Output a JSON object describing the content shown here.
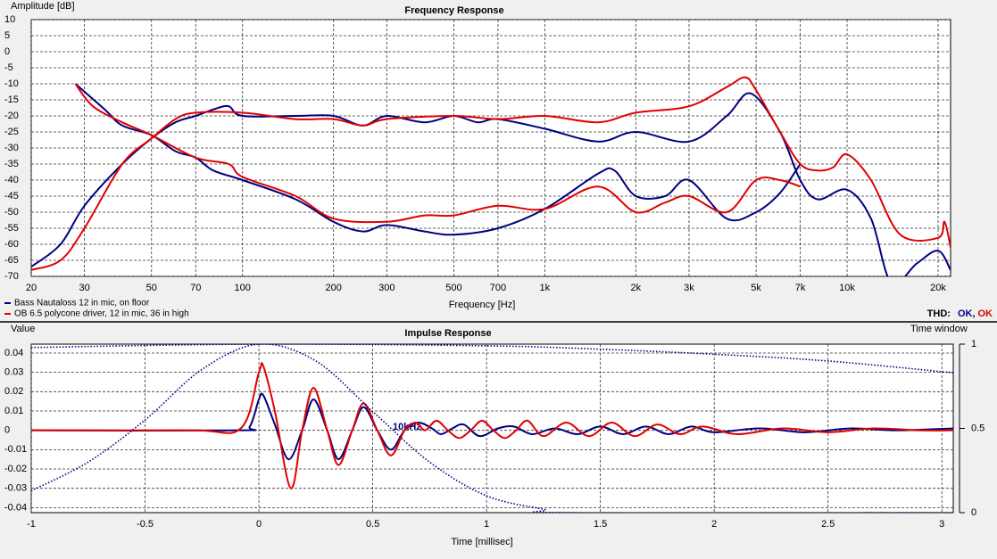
{
  "chart_data": [
    {
      "type": "line",
      "title": "Frequency Response",
      "ylabel": "Amplitude [dB]",
      "xlabel": "Frequency [Hz]",
      "xscale": "log",
      "xlim": [
        20,
        22000
      ],
      "ylim": [
        -70,
        10
      ],
      "grid": true,
      "legend": "bottom-left",
      "xticks": [
        20,
        30,
        50,
        70,
        100,
        200,
        300,
        500,
        700,
        {
          "value": 1000,
          "label": "1k"
        },
        {
          "value": 2000,
          "label": "2k"
        },
        {
          "value": 3000,
          "label": "3k"
        },
        {
          "value": 5000,
          "label": "5k"
        },
        {
          "value": 7000,
          "label": "7k"
        },
        {
          "value": 10000,
          "label": "10k"
        },
        {
          "value": 20000,
          "label": "20k"
        }
      ],
      "yticks": [
        10,
        5,
        0,
        -5,
        -10,
        -15,
        -20,
        -25,
        -30,
        -35,
        -40,
        -45,
        -50,
        -55,
        -60,
        -65,
        -70
      ],
      "thd": {
        "label": "THD:",
        "separator": ",",
        "items": [
          {
            "text": "OK",
            "color": "#00008b"
          },
          {
            "text": "OK",
            "color": "#e00000"
          }
        ]
      },
      "series": [
        {
          "name": "Bass Nautaloss 12 in mic, on floor",
          "color": "#000080",
          "curves": [
            {
              "x": [
                20,
                25,
                30,
                40,
                50,
                60,
                70,
                80,
                90,
                100,
                150,
                200,
                250,
                300,
                400,
                500,
                600,
                700,
                1000,
                1500,
                2000,
                3000,
                4000,
                4800,
                6000,
                7000,
                8000,
                10000,
                12000,
                14000,
                17000,
                20000,
                22000
              ],
              "values": [
                -67,
                -60,
                -48,
                -35,
                -27,
                -22,
                -20,
                -18,
                -17,
                -20,
                -20,
                -20,
                -23,
                -20,
                -22,
                -20,
                -22,
                -21,
                -24,
                -28,
                -25,
                -28,
                -20,
                -13,
                -25,
                -40,
                -46,
                -43,
                -52,
                -72,
                -66,
                -62,
                -68
              ]
            },
            {
              "x": [
                28,
                35,
                40,
                50,
                60,
                70,
                80,
                100,
                150,
                200,
                250,
                300,
                400,
                500,
                700,
                1000,
                1500,
                1700,
                2000,
                2500,
                3000,
                4000,
                5000,
                6000,
                7000
              ],
              "values": [
                -10,
                -18,
                -23,
                -26,
                -31,
                -33,
                -37,
                -40,
                -46,
                -53,
                -56,
                -54,
                -56,
                -57,
                -55,
                -49,
                -38,
                -37,
                -45,
                -45,
                -40,
                -52,
                -50,
                -44,
                -35
              ]
            }
          ]
        },
        {
          "name": "OB 6.5 polycone driver, 12 in mic, 36 in high",
          "color": "#e00000",
          "curves": [
            {
              "x": [
                20,
                25,
                30,
                40,
                50,
                60,
                70,
                100,
                150,
                200,
                250,
                300,
                500,
                700,
                1000,
                1500,
                2000,
                3000,
                4000,
                4600,
                5000,
                6000,
                7000,
                8000,
                9000,
                10000,
                12000,
                15000,
                20000,
                21000,
                22000
              ],
              "values": [
                -68,
                -65,
                -55,
                -35,
                -27,
                -21,
                -19,
                -19,
                -21,
                -21,
                -23,
                -21,
                -20,
                -21,
                -20,
                -22,
                -19,
                -17,
                -11,
                -8,
                -12,
                -25,
                -35,
                -37,
                -36,
                -32,
                -40,
                -57,
                -58,
                -53,
                -61
              ]
            },
            {
              "x": [
                28,
                32,
                40,
                50,
                70,
                90,
                100,
                150,
                200,
                300,
                400,
                500,
                700,
                1000,
                1500,
                2000,
                2500,
                3000,
                4000,
                5000,
                6000,
                7000
              ],
              "values": [
                -10,
                -17,
                -22,
                -26,
                -33,
                -35,
                -39,
                -45,
                -52,
                -53,
                -51,
                -51,
                -48,
                -49,
                -42,
                -50,
                -47,
                -45,
                -50,
                -40,
                -40,
                -42
              ]
            }
          ]
        }
      ]
    },
    {
      "type": "line",
      "title": "Impulse Response",
      "ylabel": "Value",
      "y2label": "Time window",
      "xlabel": "Time [millisec]",
      "annotation": "10kHz",
      "xlim": [
        -1,
        3.05
      ],
      "ylim": [
        -0.0426,
        0.0446
      ],
      "y2lim": [
        0,
        1
      ],
      "grid": true,
      "xticks": [
        -1,
        -0.5,
        0,
        0.5,
        1,
        1.5,
        2,
        2.5,
        3
      ],
      "yticks": [
        0.04,
        0.03,
        0.02,
        0.01,
        0,
        -0.01,
        -0.02,
        -0.03,
        -0.04
      ],
      "y2ticks": [
        1,
        0.5,
        0
      ],
      "series": [
        {
          "color": "#000080",
          "x": [
            -1,
            -0.1,
            -0.04,
            0,
            0.02,
            0.07,
            0.13,
            0.19,
            0.24,
            0.3,
            0.35,
            0.41,
            0.46,
            0.52,
            0.58,
            0.64,
            0.7,
            0.76,
            0.8,
            0.85,
            0.9,
            0.97,
            1.05,
            1.12,
            1.2,
            1.3,
            1.4,
            1.5,
            1.6,
            1.7,
            1.8,
            1.9,
            2.0,
            2.2,
            2.4,
            2.6,
            2.8,
            3.05
          ],
          "values": [
            0,
            0,
            0.002,
            0.016,
            0.018,
            0.003,
            -0.015,
            0,
            0.016,
            0,
            -0.015,
            0,
            0.012,
            0,
            -0.01,
            0,
            0.004,
            0.001,
            -0.002,
            0.001,
            0.003,
            -0.003,
            0.001,
            0.002,
            -0.002,
            0.001,
            -0.002,
            0.002,
            -0.002,
            0.002,
            -0.002,
            0.002,
            -0.001,
            0.001,
            -0.001,
            0.001,
            0,
            0.001
          ]
        },
        {
          "color": "#e00000",
          "x": [
            -1,
            -0.3,
            -0.08,
            0,
            0.02,
            0.07,
            0.14,
            0.19,
            0.24,
            0.3,
            0.35,
            0.41,
            0.46,
            0.52,
            0.58,
            0.64,
            0.69,
            0.73,
            0.78,
            0.83,
            0.88,
            0.93,
            0.98,
            1.03,
            1.08,
            1.13,
            1.18,
            1.25,
            1.35,
            1.45,
            1.55,
            1.65,
            1.75,
            1.85,
            1.95,
            2.1,
            2.3,
            2.5,
            2.7,
            2.9,
            3.05
          ],
          "values": [
            0,
            0,
            0.001,
            0.03,
            0.033,
            0.01,
            -0.03,
            0,
            0.022,
            0,
            -0.018,
            0,
            0.014,
            0,
            -0.013,
            0,
            0.004,
            0,
            0.005,
            0,
            -0.004,
            0,
            0.005,
            0,
            -0.004,
            0,
            0.005,
            -0.003,
            0.004,
            -0.003,
            0.004,
            -0.003,
            0.003,
            -0.002,
            0.002,
            -0.002,
            0.001,
            -0.001,
            0.001,
            0,
            0
          ]
        },
        {
          "color": "#000080",
          "style": "dotted",
          "axis": "y2",
          "x": [
            -1,
            -0.75,
            -0.5,
            -0.25,
            0,
            0.25,
            0.5,
            0.75,
            1.0,
            1.25,
            1.35,
            3.05
          ],
          "values": [
            0.13,
            0.3,
            0.55,
            0.85,
            1,
            0.9,
            0.6,
            0.3,
            0.1,
            0.02,
            0,
            0
          ]
        },
        {
          "color": "#000080",
          "style": "dotted",
          "axis": "y2",
          "x": [
            -1,
            0,
            1,
            1.5,
            2,
            2.5,
            3.05
          ],
          "values": [
            0.98,
            1,
            0.99,
            0.97,
            0.94,
            0.9,
            0.83
          ]
        }
      ]
    }
  ]
}
